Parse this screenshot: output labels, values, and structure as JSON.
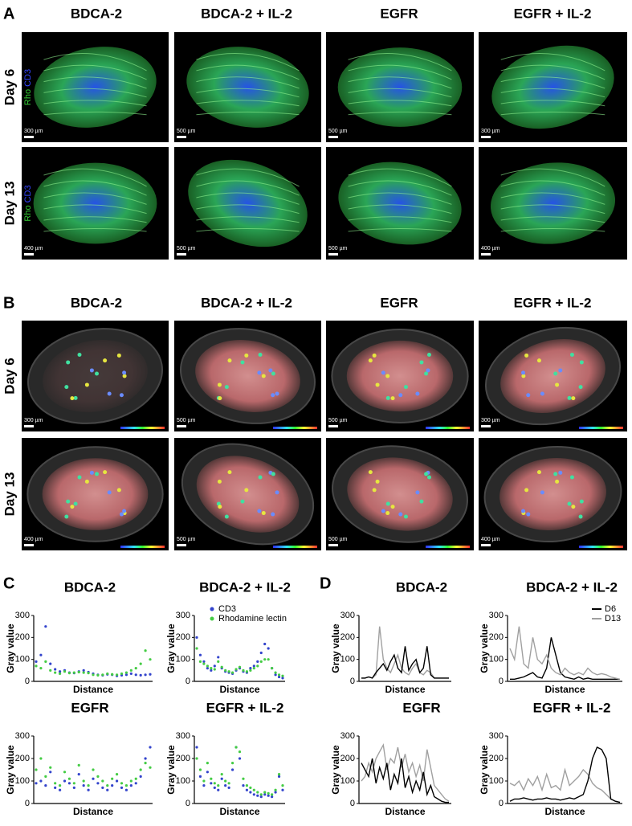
{
  "panels": {
    "A": {
      "label": "A",
      "columns": [
        "BDCA-2",
        "BDCA-2 + IL-2",
        "EGFR",
        "EGFR + IL-2"
      ],
      "rows": [
        "Day 6",
        "Day 13"
      ],
      "stain": [
        "Rho",
        "CD3"
      ],
      "scale_bars": [
        [
          "300 µm",
          "500 µm",
          "500 µm",
          "300 µm"
        ],
        [
          "400 µm",
          "500 µm",
          "500 µm",
          "400 µm"
        ]
      ]
    },
    "B": {
      "label": "B",
      "columns": [
        "BDCA-2",
        "BDCA-2 + IL-2",
        "EGFR",
        "EGFR + IL-2"
      ],
      "rows": [
        "Day 6",
        "Day 13"
      ],
      "scale_bars": [
        [
          "300 µm",
          "500 µm",
          "500 µm",
          "300 µm"
        ],
        [
          "400 µm",
          "500 µm",
          "500 µm",
          "400 µm"
        ]
      ]
    },
    "C": {
      "label": "C"
    },
    "D": {
      "label": "D"
    }
  },
  "chart_data": [
    {
      "type": "scatter",
      "title": "BDCA-2",
      "ylabel": "Gray value",
      "xlabel": "Distance",
      "ylim": [
        0,
        300
      ],
      "yticks": [
        0,
        100,
        200,
        300
      ],
      "series": [
        {
          "color": "#3344cc",
          "values": [
            90,
            120,
            250,
            80,
            55,
            45,
            50,
            40,
            38,
            45,
            50,
            42,
            35,
            30,
            28,
            32,
            30,
            25,
            28,
            30,
            35,
            30,
            28,
            30,
            32
          ]
        },
        {
          "color": "#44cc44",
          "values": [
            70,
            60,
            90,
            50,
            40,
            35,
            45,
            38,
            40,
            42,
            40,
            38,
            30,
            28,
            30,
            35,
            32,
            30,
            35,
            40,
            50,
            60,
            80,
            140,
            100
          ]
        }
      ]
    },
    {
      "type": "scatter",
      "title": "BDCA-2 + IL-2",
      "ylabel": "Gray value",
      "xlabel": "Distance",
      "ylim": [
        0,
        300
      ],
      "yticks": [
        0,
        100,
        200,
        300
      ],
      "legend": "top-left",
      "series": [
        {
          "name": "CD3",
          "color": "#3344cc",
          "values": [
            200,
            120,
            90,
            60,
            50,
            70,
            110,
            60,
            45,
            40,
            35,
            50,
            60,
            45,
            40,
            60,
            70,
            90,
            130,
            170,
            150,
            60,
            30,
            20,
            15
          ]
        },
        {
          "name": "Rhodamine lectin",
          "color": "#44cc44",
          "values": [
            150,
            90,
            80,
            70,
            60,
            55,
            90,
            65,
            50,
            45,
            40,
            55,
            65,
            50,
            45,
            50,
            60,
            70,
            90,
            100,
            100,
            60,
            40,
            30,
            25
          ]
        }
      ]
    },
    {
      "type": "scatter",
      "title": "EGFR",
      "ylabel": "Gray value",
      "xlabel": "Distance",
      "ylim": [
        0,
        300
      ],
      "yticks": [
        0,
        100,
        200,
        300
      ],
      "series": [
        {
          "color": "#3344cc",
          "values": [
            90,
            100,
            80,
            140,
            70,
            60,
            100,
            90,
            70,
            130,
            80,
            60,
            110,
            90,
            70,
            60,
            80,
            100,
            70,
            60,
            80,
            90,
            120,
            200,
            250
          ]
        },
        {
          "color": "#44cc44",
          "values": [
            150,
            200,
            120,
            160,
            90,
            80,
            140,
            110,
            90,
            170,
            100,
            80,
            150,
            120,
            100,
            80,
            110,
            130,
            90,
            80,
            100,
            110,
            150,
            180,
            160
          ]
        }
      ]
    },
    {
      "type": "scatter",
      "title": "EGFR + IL-2",
      "ylabel": "Gray value",
      "xlabel": "Distance",
      "ylim": [
        0,
        300
      ],
      "yticks": [
        0,
        100,
        200,
        300
      ],
      "series": [
        {
          "color": "#3344cc",
          "values": [
            250,
            120,
            80,
            140,
            90,
            70,
            60,
            110,
            80,
            70,
            150,
            250,
            200,
            80,
            60,
            50,
            40,
            35,
            30,
            40,
            35,
            30,
            50,
            120,
            60
          ]
        },
        {
          "color": "#44cc44",
          "values": [
            200,
            150,
            100,
            180,
            110,
            90,
            80,
            130,
            100,
            90,
            180,
            250,
            230,
            110,
            80,
            70,
            60,
            50,
            40,
            50,
            45,
            40,
            60,
            130,
            80
          ]
        }
      ]
    },
    {
      "type": "line",
      "title": "BDCA-2",
      "ylabel": "Gray value",
      "xlabel": "Distance",
      "ylim": [
        0,
        300
      ],
      "yticks": [
        0,
        100,
        200,
        300
      ],
      "series": [
        {
          "color": "#a0a0a0",
          "values": [
            15,
            15,
            20,
            15,
            30,
            250,
            100,
            60,
            40,
            80,
            120,
            60,
            40,
            30,
            60,
            80,
            40,
            30,
            50,
            40,
            15,
            15,
            15,
            15,
            15
          ]
        },
        {
          "color": "#000000",
          "values": [
            15,
            15,
            20,
            15,
            40,
            60,
            80,
            50,
            90,
            120,
            60,
            40,
            160,
            50,
            80,
            100,
            40,
            60,
            160,
            30,
            15,
            15,
            15,
            15,
            15
          ]
        }
      ]
    },
    {
      "type": "line",
      "title": "BDCA-2 + IL-2",
      "ylabel": "Gray value",
      "xlabel": "Distance",
      "ylim": [
        0,
        300
      ],
      "yticks": [
        0,
        100,
        200,
        300
      ],
      "legend": "top-right",
      "series": [
        {
          "name": "D6",
          "color": "#000000",
          "values": [
            10,
            10,
            15,
            20,
            30,
            40,
            20,
            15,
            60,
            200,
            120,
            40,
            20,
            15,
            10,
            20,
            10,
            15,
            10,
            10,
            10,
            10,
            10,
            10,
            10
          ]
        },
        {
          "name": "D13",
          "color": "#a0a0a0",
          "values": [
            150,
            100,
            250,
            80,
            60,
            200,
            100,
            80,
            120,
            60,
            40,
            30,
            60,
            40,
            30,
            40,
            30,
            60,
            40,
            30,
            35,
            30,
            20,
            15,
            10
          ]
        }
      ]
    },
    {
      "type": "line",
      "title": "EGFR",
      "ylabel": "Gray value",
      "xlabel": "Distance",
      "ylim": [
        0,
        300
      ],
      "yticks": [
        0,
        100,
        200,
        300
      ],
      "series": [
        {
          "color": "#a0a0a0",
          "values": [
            100,
            120,
            180,
            140,
            200,
            230,
            260,
            150,
            200,
            180,
            250,
            160,
            220,
            140,
            180,
            120,
            170,
            100,
            240,
            160,
            80,
            60,
            40,
            20,
            10
          ]
        },
        {
          "color": "#000000",
          "values": [
            180,
            150,
            120,
            200,
            90,
            160,
            110,
            180,
            60,
            130,
            90,
            200,
            70,
            120,
            50,
            100,
            60,
            140,
            40,
            80,
            30,
            20,
            10,
            5,
            5
          ]
        }
      ]
    },
    {
      "type": "line",
      "title": "EGFR + IL-2",
      "ylabel": "Gray value",
      "xlabel": "Distance",
      "ylim": [
        0,
        300
      ],
      "yticks": [
        0,
        100,
        200,
        300
      ],
      "series": [
        {
          "color": "#a0a0a0",
          "values": [
            90,
            80,
            100,
            60,
            110,
            80,
            120,
            60,
            130,
            70,
            80,
            60,
            150,
            80,
            100,
            120,
            150,
            130,
            90,
            70,
            60,
            40,
            20,
            10,
            5
          ]
        },
        {
          "color": "#000000",
          "values": [
            10,
            20,
            20,
            25,
            20,
            15,
            20,
            20,
            25,
            20,
            20,
            15,
            20,
            25,
            20,
            30,
            40,
            100,
            200,
            250,
            240,
            200,
            20,
            10,
            5
          ]
        }
      ]
    }
  ]
}
